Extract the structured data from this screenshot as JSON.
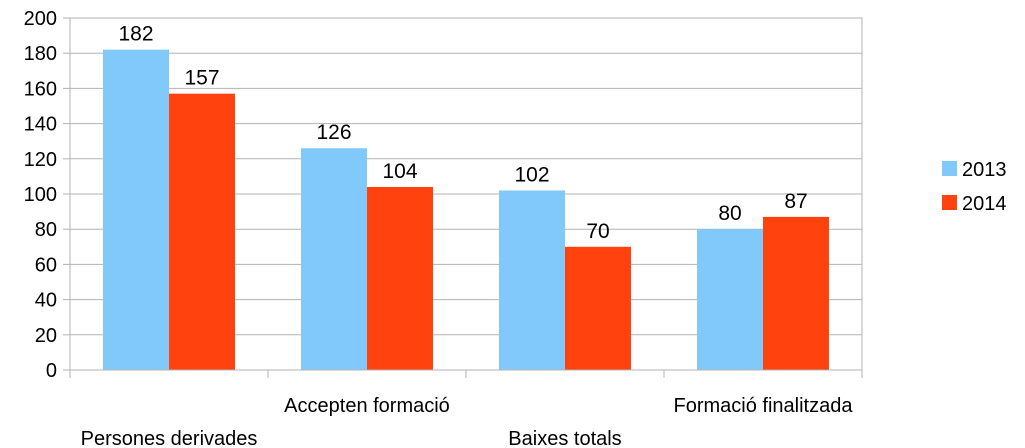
{
  "chart_data": {
    "type": "bar",
    "categories": [
      "Persones derivades",
      "Accepten formació",
      "Baixes totals",
      "Formació finalitzada"
    ],
    "series": [
      {
        "name": "2013",
        "values": [
          182,
          126,
          102,
          80
        ],
        "color": "#81C9FA"
      },
      {
        "name": "2014",
        "values": [
          157,
          104,
          70,
          87
        ],
        "color": "#FF420E"
      }
    ],
    "ylim": [
      0,
      200
    ],
    "yticks": [
      0,
      20,
      40,
      60,
      80,
      100,
      120,
      140,
      160,
      180,
      200
    ],
    "grid": true,
    "grid_color": "#B3B3B3",
    "legend_position": "right",
    "data_labels": true,
    "category_labels_staggered": true
  }
}
